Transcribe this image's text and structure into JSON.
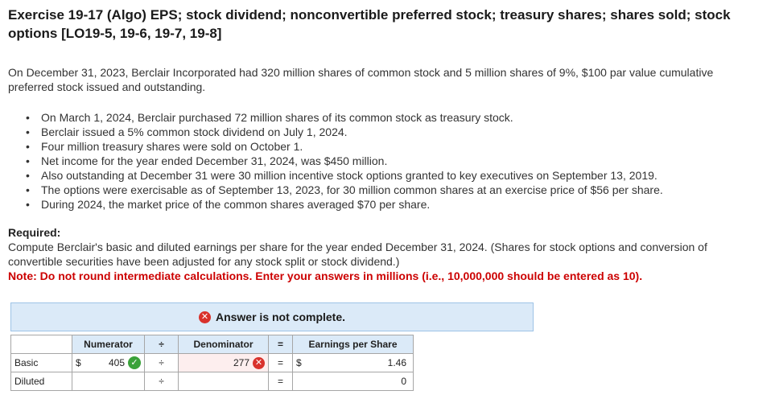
{
  "title": "Exercise 19-17 (Algo) EPS; stock dividend; nonconvertible preferred stock; treasury shares; shares sold; stock options [LO19-5, 19-6, 19-7, 19-8]",
  "intro": "On December 31, 2023, Berclair Incorporated had 320 million shares of common stock and 5 million shares of 9%, $100 par value cumulative preferred stock issued and outstanding.",
  "bullets": [
    "On March 1, 2024, Berclair purchased 72 million shares of its common stock as treasury stock.",
    "Berclair issued a 5% common stock dividend on July 1, 2024.",
    "Four million treasury shares were sold on October 1.",
    "Net income for the year ended December 31, 2024, was $450 million.",
    "Also outstanding at December 31 were 30 million incentive stock options granted to key executives on September 13, 2019.",
    "The options were exercisable as of September 13, 2023, for 30 million common shares at an exercise price of $56 per share.",
    "During 2024, the market price of the common shares averaged $70 per share."
  ],
  "required_label": "Required:",
  "required_text": "Compute Berclair's basic and diluted earnings per share for the year ended December 31, 2024. (Shares for stock options and conversion of convertible securities have been adjusted for any stock split or stock dividend.)",
  "note": "Note: Do not round intermediate calculations. Enter your answers in millions (i.e., 10,000,000 should be entered as 10).",
  "banner": {
    "text": "Answer is not complete."
  },
  "table": {
    "headers": {
      "numerator": "Numerator",
      "divide": "÷",
      "denominator": "Denominator",
      "equals": "=",
      "eps": "Earnings per Share"
    },
    "rows": [
      {
        "label": "Basic",
        "num_dollar": "$",
        "numerator": "405",
        "divide": "÷",
        "denominator": "277",
        "equals": "=",
        "eps_dollar": "$",
        "eps": "1.46"
      },
      {
        "label": "Diluted",
        "num_dollar": "",
        "numerator": "",
        "divide": "÷",
        "denominator": "",
        "equals": "=",
        "eps_dollar": "",
        "eps": "0"
      }
    ]
  },
  "icons": {
    "banner": "x-circle-icon",
    "correct": "checkmark-circle-icon",
    "incorrect": "x-circle-icon"
  },
  "colors": {
    "note_red": "#cc0000",
    "banner_bg": "#dbeaf8",
    "correct_green": "#3aa23a",
    "incorrect_red": "#d9322c"
  }
}
